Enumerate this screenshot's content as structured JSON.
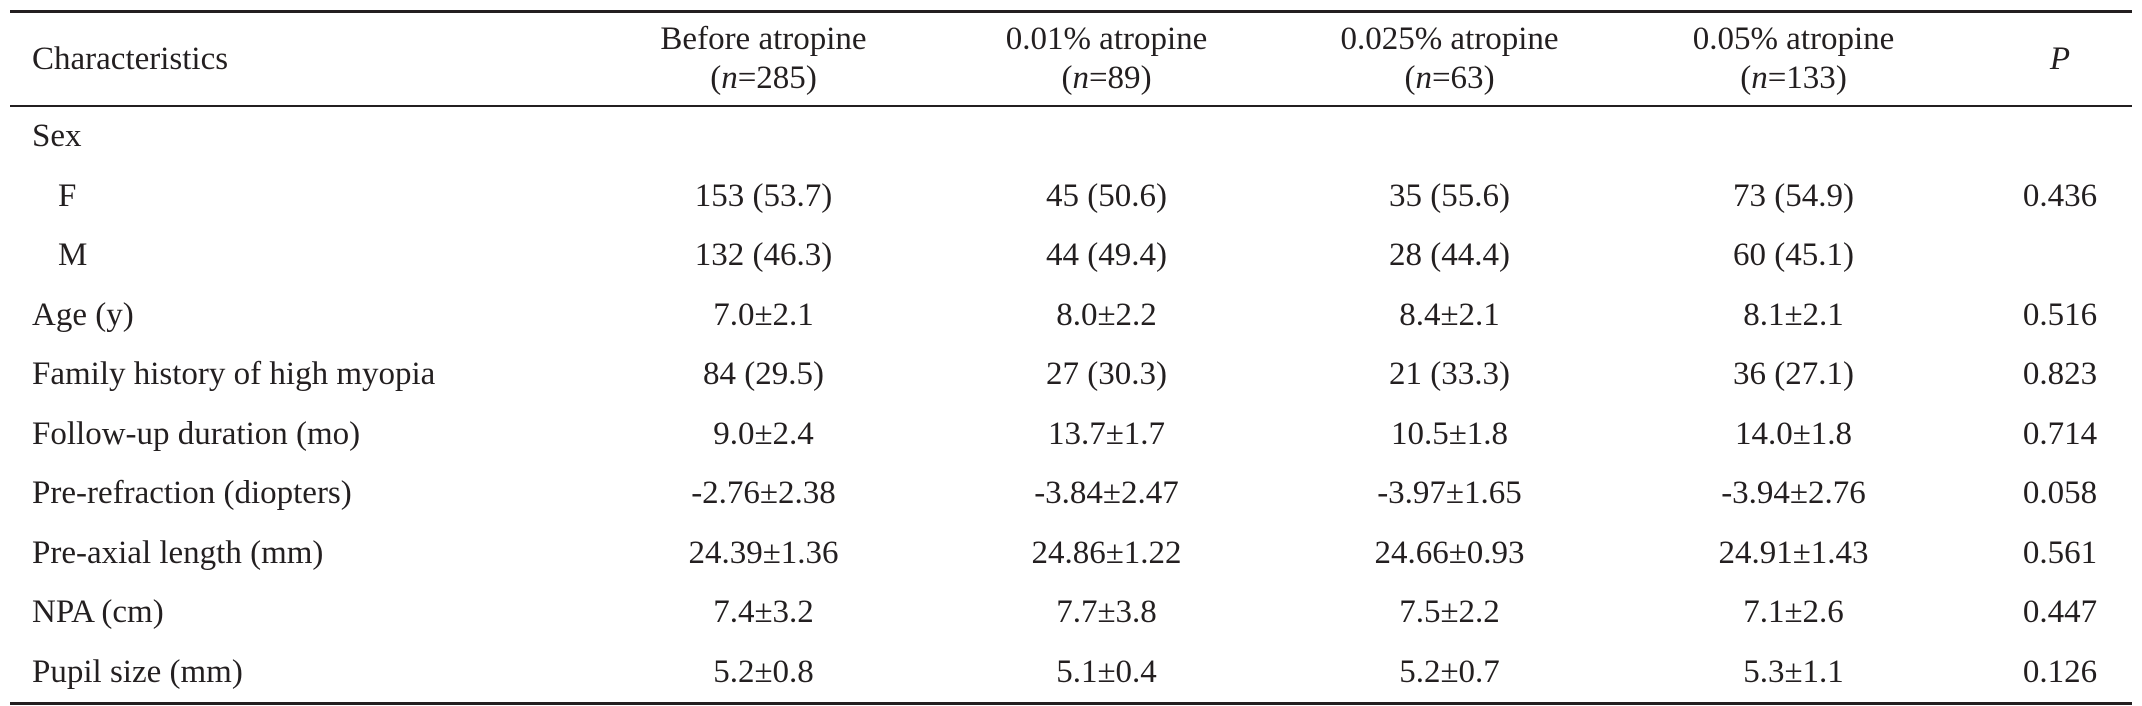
{
  "table": {
    "headers": [
      {
        "label": "Characteristics",
        "n_prefix": "",
        "n_value": ""
      },
      {
        "label": "Before atropine",
        "n_prefix": "n",
        "n_value": "=285"
      },
      {
        "label": "0.01% atropine",
        "n_prefix": "n",
        "n_value": "=89"
      },
      {
        "label": "0.025% atropine",
        "n_prefix": "n",
        "n_value": "=63"
      },
      {
        "label": "0.05% atropine",
        "n_prefix": "n",
        "n_value": "=133"
      },
      {
        "label": "P",
        "n_prefix": "",
        "n_value": ""
      }
    ],
    "rows": [
      {
        "label": "Sex",
        "values": [
          "",
          "",
          "",
          "",
          ""
        ]
      },
      {
        "label": "F",
        "values": [
          "153 (53.7)",
          "45 (50.6)",
          "35 (55.6)",
          "73 (54.9)",
          "0.436"
        ]
      },
      {
        "label": "M",
        "values": [
          "132 (46.3)",
          "44 (49.4)",
          "28 (44.4)",
          "60 (45.1)",
          ""
        ]
      },
      {
        "label": "Age (y)",
        "values": [
          "7.0±2.1",
          "8.0±2.2",
          "8.4±2.1",
          "8.1±2.1",
          "0.516"
        ]
      },
      {
        "label": "Family history of high myopia",
        "values": [
          "84 (29.5)",
          "27 (30.3)",
          "21 (33.3)",
          "36 (27.1)",
          "0.823"
        ]
      },
      {
        "label": "Follow-up duration (mo)",
        "values": [
          "9.0±2.4",
          "13.7±1.7",
          "10.5±1.8",
          "14.0±1.8",
          "0.714"
        ]
      },
      {
        "label": "Pre-refraction (diopters)",
        "values": [
          "-2.76±2.38",
          "-3.84±2.47",
          "-3.97±1.65",
          "-3.94±2.76",
          "0.058"
        ]
      },
      {
        "label": "Pre-axial length (mm)",
        "values": [
          "24.39±1.36",
          "24.86±1.22",
          "24.66±0.93",
          "24.91±1.43",
          "0.561"
        ]
      },
      {
        "label": "NPA (cm)",
        "values": [
          "7.4±3.2",
          "7.7±3.8",
          "7.5±2.2",
          "7.1±2.6",
          "0.447"
        ]
      },
      {
        "label": "Pupil size (mm)",
        "values": [
          "5.2±0.8",
          "5.1±0.4",
          "5.2±0.7",
          "5.3±1.1",
          "0.126"
        ]
      }
    ]
  }
}
